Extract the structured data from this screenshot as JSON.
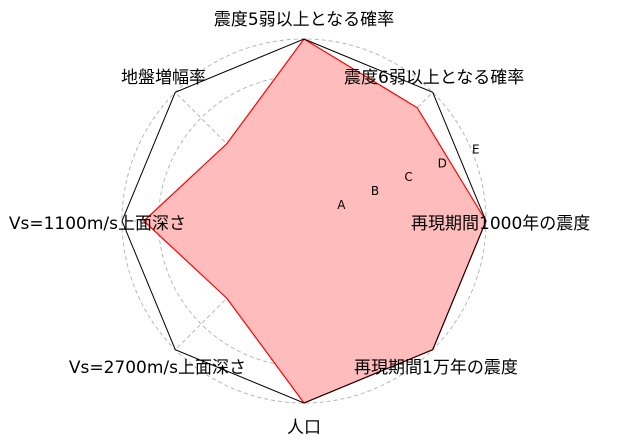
{
  "chart_data": {
    "type": "radar",
    "axes": [
      "震度5弱以上となる確率",
      "震度6弱以上となる確率",
      "再現期間1000年の震度",
      "再現期間1万年の震度",
      "人口",
      "Vs=2700m/s上面深さ",
      "Vs=1100m/s上面深さ",
      "地盤増幅率"
    ],
    "ring_labels": [
      "A",
      "B",
      "C",
      "D",
      "E"
    ],
    "max": 5,
    "values": [
      5,
      4.4,
      5,
      5,
      5,
      3,
      4.4,
      3
    ],
    "colors": {
      "line": "#ff0000",
      "fill": "#ffbcbc",
      "frame": "#000000",
      "grid": "#b0b0b0"
    },
    "grid": true
  }
}
